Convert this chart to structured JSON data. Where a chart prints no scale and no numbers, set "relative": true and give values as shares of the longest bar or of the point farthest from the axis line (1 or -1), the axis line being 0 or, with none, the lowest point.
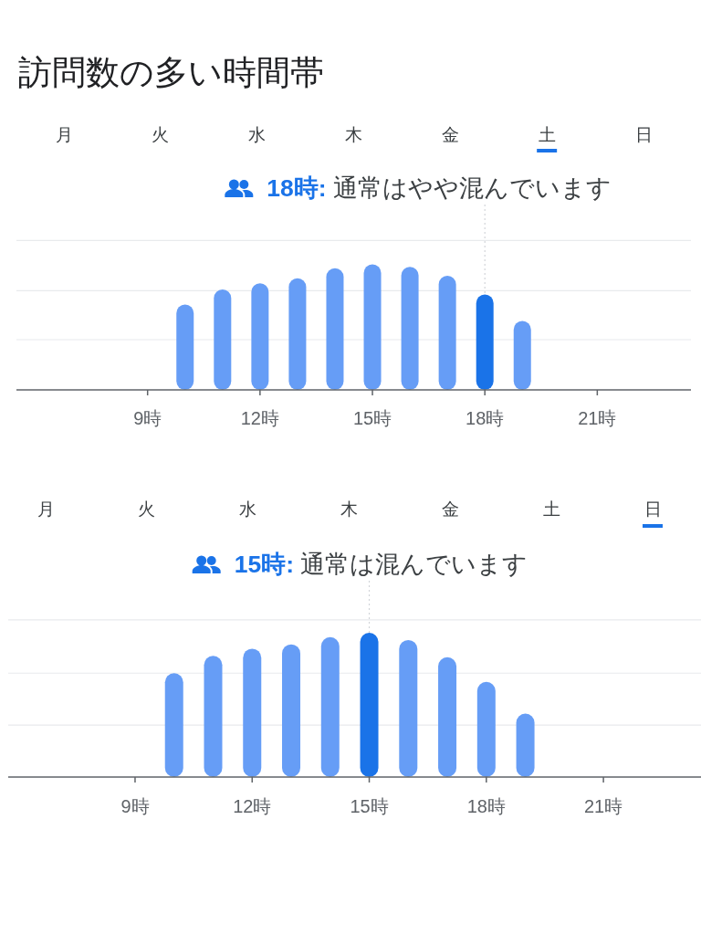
{
  "chart_data": [
    {
      "type": "bar",
      "title": "訪問数の多い時間帯",
      "x": [
        10,
        11,
        12,
        13,
        14,
        15,
        16,
        17,
        18,
        19
      ],
      "values": [
        0.68,
        0.8,
        0.85,
        0.89,
        0.97,
        1,
        0.98,
        0.91,
        0.76,
        0.55
      ],
      "colors": [
        "#669df6",
        "#669df6",
        "#669df6",
        "#669df6",
        "#669df6",
        "#669df6",
        "#669df6",
        "#669df6",
        "#1a73e8",
        "#669df6"
      ],
      "relative": true,
      "xlim": [
        5.5,
        23.5
      ],
      "xticks": [
        {
          "value": 9,
          "label": "9時"
        },
        {
          "value": 12,
          "label": "12時"
        },
        {
          "value": 15,
          "label": "15時"
        },
        {
          "value": 18,
          "label": "18時"
        },
        {
          "value": 21,
          "label": "21時"
        }
      ],
      "ref_lines": [
        {
          "axis": "x",
          "value": 18,
          "color": "#d2d5d9",
          "line_style": "dotted"
        },
        {
          "axis": "y",
          "value": 0.4,
          "color": "#e8eaed"
        },
        {
          "axis": "y",
          "value": 0.79,
          "color": "#e8eaed"
        },
        {
          "axis": "y",
          "value": 1.19,
          "color": "#e8eaed"
        }
      ],
      "annotations": [
        "月",
        "火",
        "水",
        "木",
        "金",
        "土",
        "日",
        "18時: 通常はやや混んでいます"
      ]
    },
    {
      "type": "bar",
      "x": [
        10,
        11,
        12,
        13,
        14,
        15,
        16,
        17,
        18,
        19
      ],
      "values": [
        0.72,
        0.84,
        0.89,
        0.92,
        0.97,
        1,
        0.95,
        0.83,
        0.66,
        0.44
      ],
      "colors": [
        "#669df6",
        "#669df6",
        "#669df6",
        "#669df6",
        "#669df6",
        "#1a73e8",
        "#669df6",
        "#669df6",
        "#669df6",
        "#669df6"
      ],
      "relative": true,
      "xlim": [
        5.75,
        23.5
      ],
      "xticks": [
        {
          "value": 9,
          "label": "9時"
        },
        {
          "value": 12,
          "label": "12時"
        },
        {
          "value": 15,
          "label": "15時"
        },
        {
          "value": 18,
          "label": "18時"
        },
        {
          "value": 21,
          "label": "21時"
        }
      ],
      "ref_lines": [
        {
          "axis": "x",
          "value": 15,
          "color": "#d2d5d9",
          "line_style": "dotted"
        },
        {
          "axis": "y",
          "value": 0.36,
          "color": "#e8eaed"
        },
        {
          "axis": "y",
          "value": 0.72,
          "color": "#e8eaed"
        },
        {
          "axis": "y",
          "value": 1.09,
          "color": "#e8eaed"
        }
      ],
      "annotations": [
        "月",
        "火",
        "水",
        "木",
        "金",
        "土",
        "日",
        "15時: 通常は混んでいます"
      ]
    }
  ]
}
